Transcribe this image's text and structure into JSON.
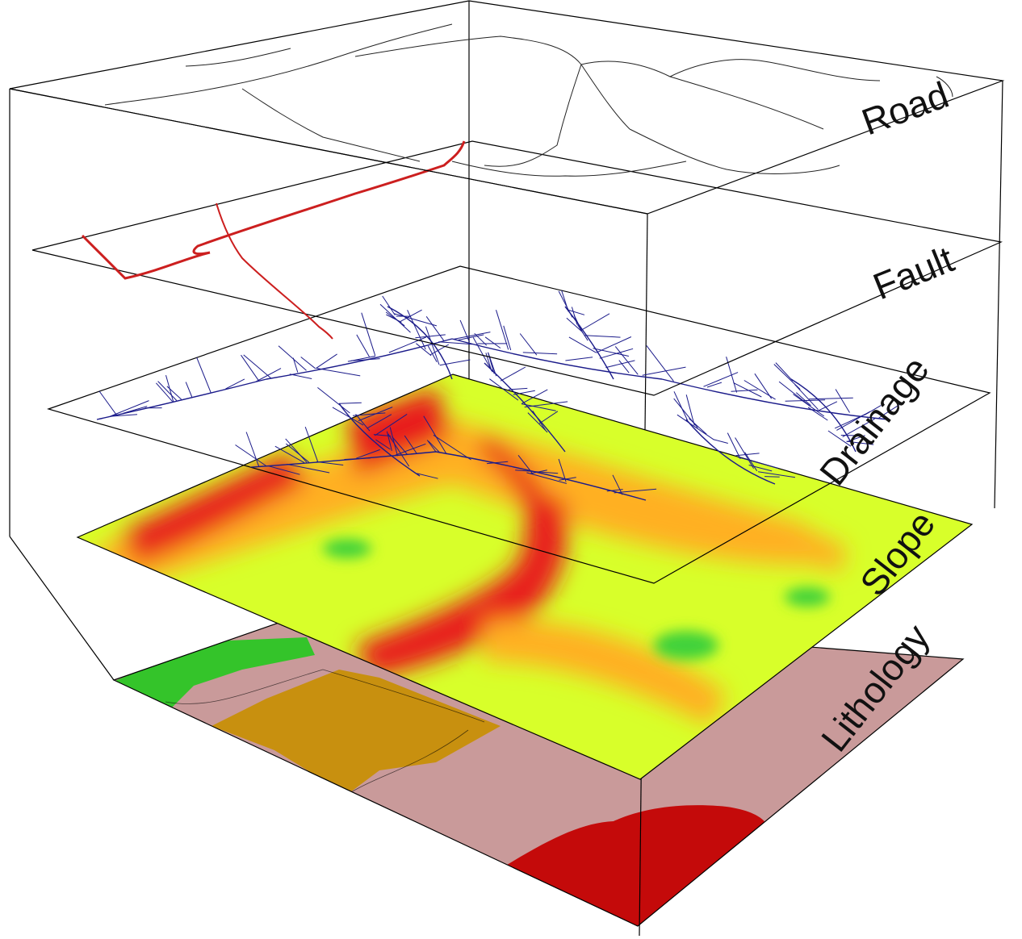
{
  "layers": [
    {
      "key": "road",
      "label": "Road",
      "color": "#ffffff"
    },
    {
      "key": "fault",
      "label": "Fault",
      "color": "#cc1f1f"
    },
    {
      "key": "drainage",
      "label": "Drainage",
      "color": "#1b1b8a"
    },
    {
      "key": "slope",
      "label": "Slope",
      "color": "#ff2a1a"
    },
    {
      "key": "lithology",
      "label": "Lithology",
      "color": "#c99a9a"
    }
  ],
  "colors": {
    "frame": "#000000",
    "fault_line": "#cc1f1f",
    "drainage_line": "#1b1b8a",
    "slope_high": "#e81c1c",
    "slope_mid": "#ffb020",
    "slope_low": "#d8ff2a",
    "slope_flat": "#3fd23a",
    "litho_pink": "#c99a9a",
    "litho_green": "#34c42a",
    "litho_ochre": "#c8900f",
    "litho_red": "#c40a0a"
  }
}
